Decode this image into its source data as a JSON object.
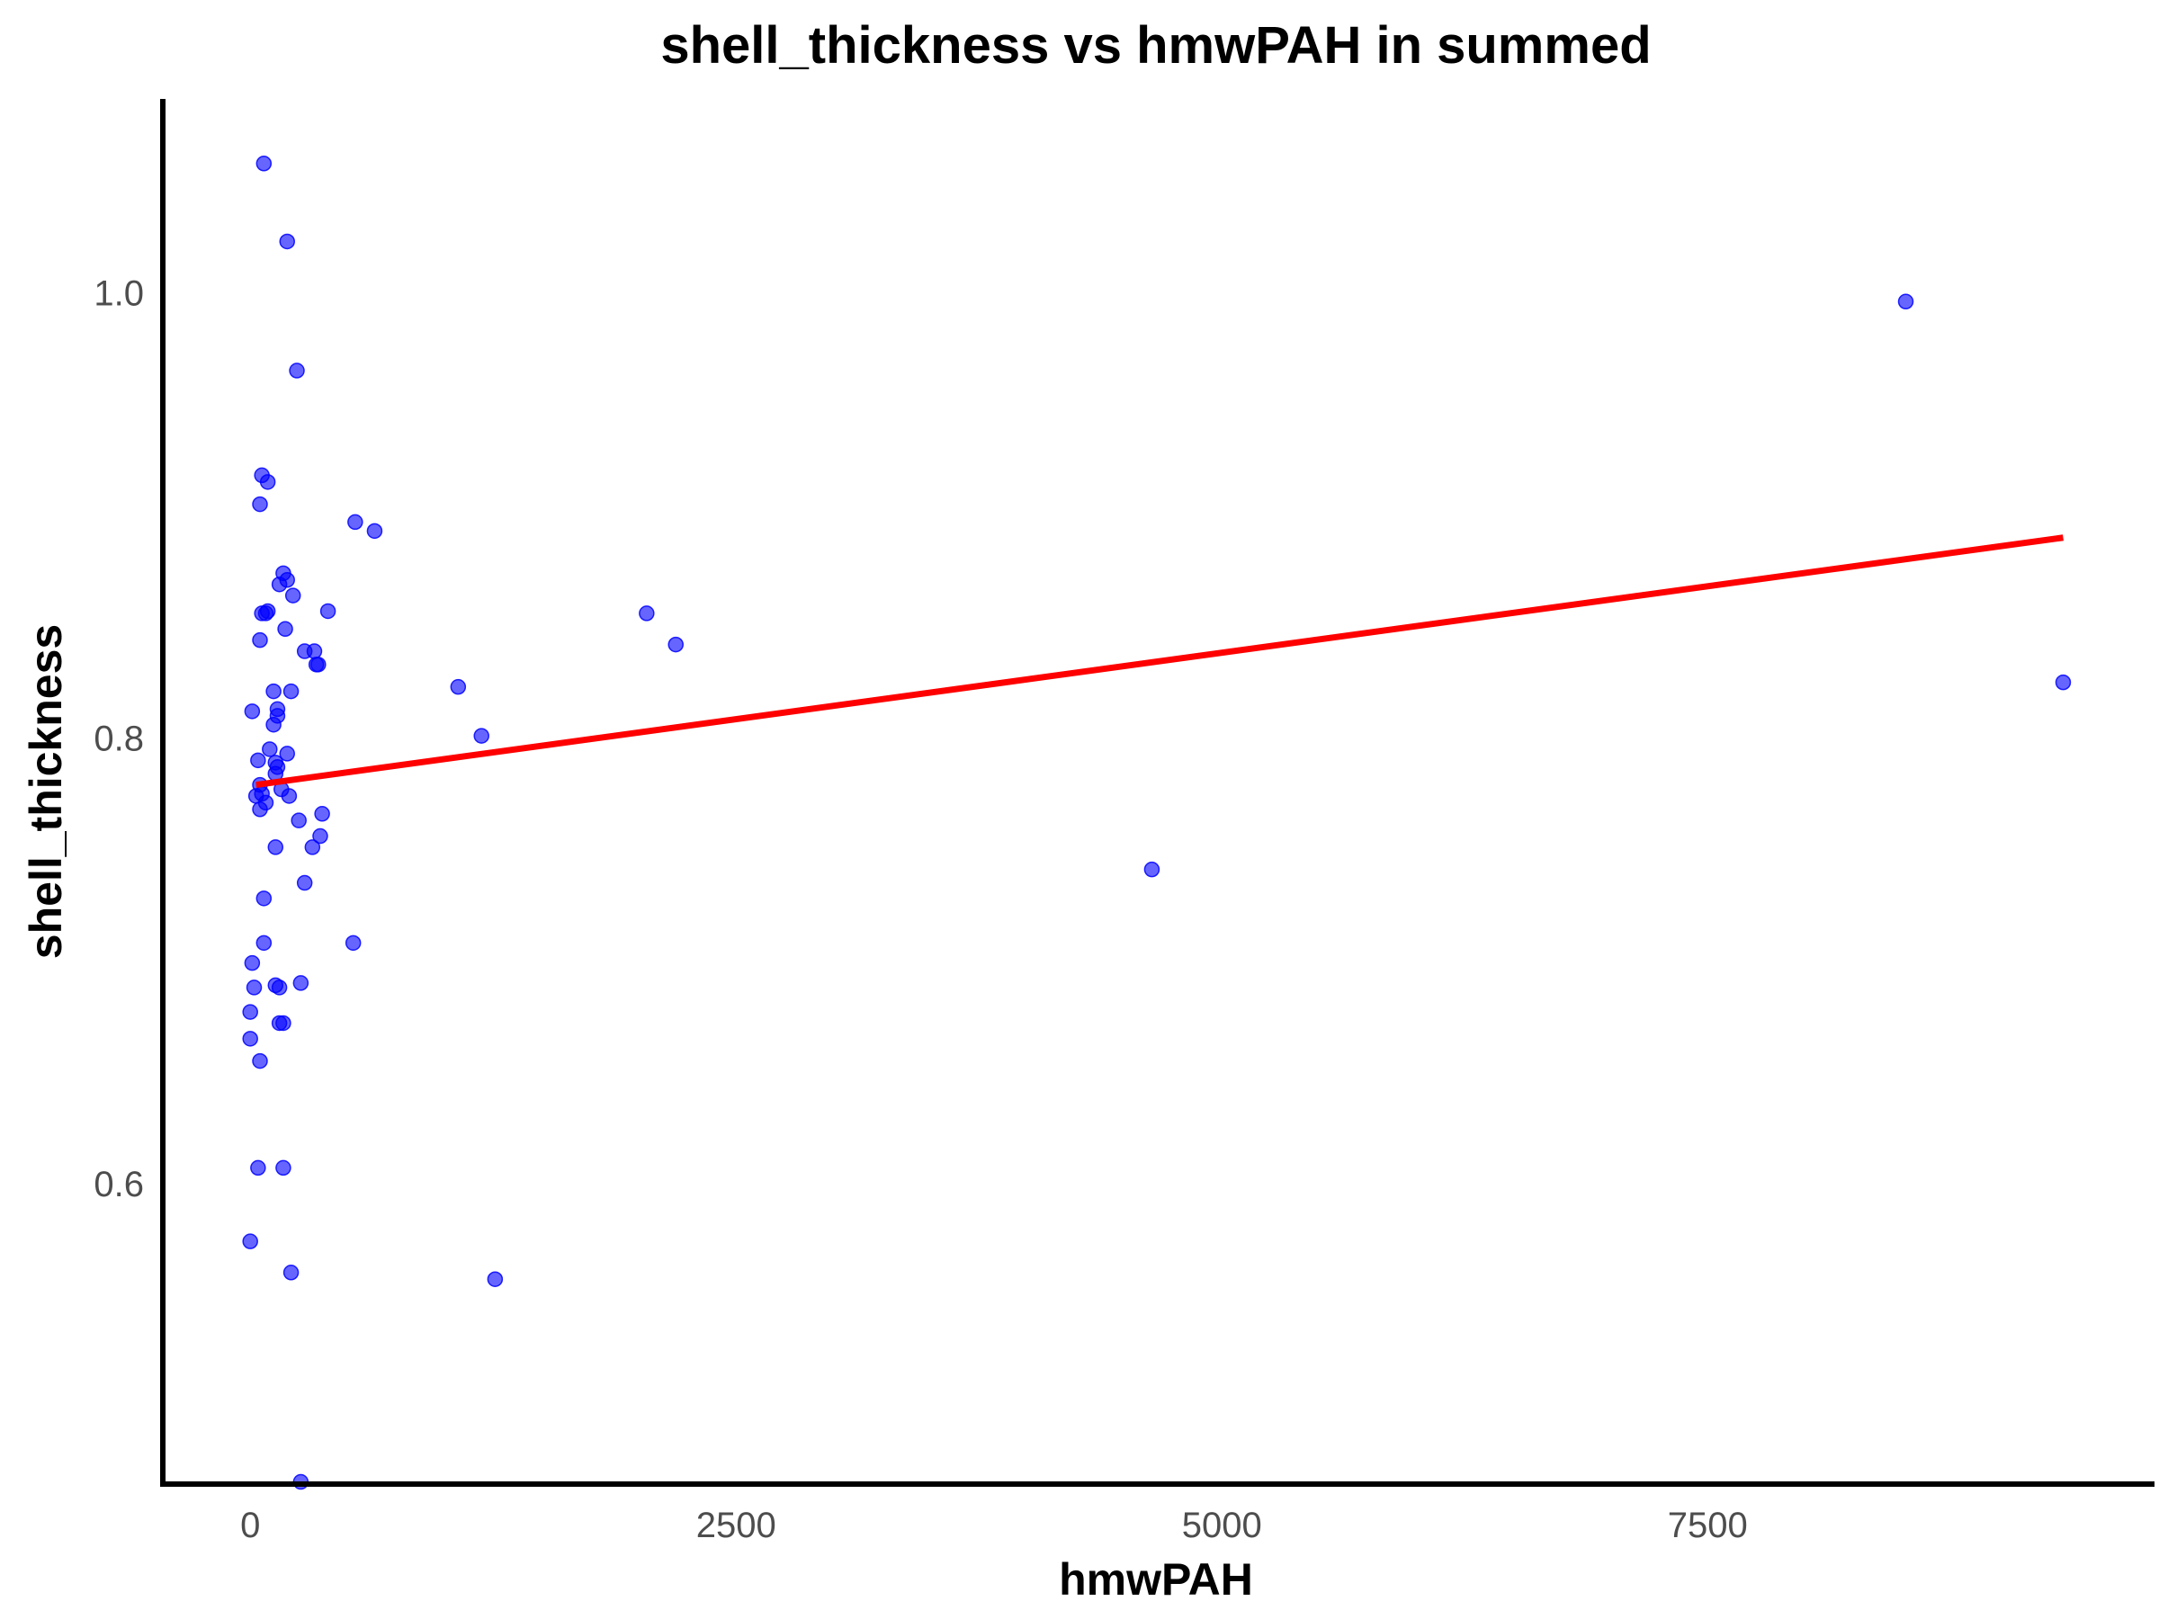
{
  "chart_data": {
    "type": "scatter",
    "title": "shell_thickness vs hmwPAH in summed",
    "xlabel": "hmwPAH",
    "ylabel": "shell_thickness",
    "xlim": [
      -450,
      9800
    ],
    "ylim": [
      0.465,
      1.087
    ],
    "x_ticks": [
      0,
      2500,
      5000,
      7500
    ],
    "x_tick_labels": [
      "0",
      "2500",
      "5000",
      "7500"
    ],
    "y_ticks": [
      0.6,
      0.8,
      1.0
    ],
    "y_tick_labels": [
      "0.6",
      "0.8",
      "1.0"
    ],
    "grid": false,
    "legend": "none",
    "point_color": "#0000ff",
    "trend_color": "#ff0000",
    "trend_line": {
      "x": [
        30,
        9330
      ],
      "y": [
        0.779,
        0.89
      ]
    },
    "points": [
      {
        "x": 70,
        "y": 1.058
      },
      {
        "x": 190,
        "y": 1.023
      },
      {
        "x": 240,
        "y": 0.965
      },
      {
        "x": 60,
        "y": 0.918
      },
      {
        "x": 90,
        "y": 0.915
      },
      {
        "x": 50,
        "y": 0.905
      },
      {
        "x": 540,
        "y": 0.897
      },
      {
        "x": 640,
        "y": 0.893
      },
      {
        "x": 170,
        "y": 0.874
      },
      {
        "x": 190,
        "y": 0.871
      },
      {
        "x": 150,
        "y": 0.869
      },
      {
        "x": 220,
        "y": 0.864
      },
      {
        "x": 400,
        "y": 0.857
      },
      {
        "x": 60,
        "y": 0.856
      },
      {
        "x": 80,
        "y": 0.856
      },
      {
        "x": 90,
        "y": 0.857
      },
      {
        "x": 180,
        "y": 0.849
      },
      {
        "x": 50,
        "y": 0.844
      },
      {
        "x": 280,
        "y": 0.839
      },
      {
        "x": 330,
        "y": 0.839
      },
      {
        "x": 340,
        "y": 0.833
      },
      {
        "x": 350,
        "y": 0.833
      },
      {
        "x": 120,
        "y": 0.821
      },
      {
        "x": 210,
        "y": 0.821
      },
      {
        "x": 140,
        "y": 0.813
      },
      {
        "x": 10,
        "y": 0.812
      },
      {
        "x": 140,
        "y": 0.81
      },
      {
        "x": 120,
        "y": 0.806
      },
      {
        "x": 100,
        "y": 0.795
      },
      {
        "x": 190,
        "y": 0.793
      },
      {
        "x": 40,
        "y": 0.79
      },
      {
        "x": 130,
        "y": 0.789
      },
      {
        "x": 140,
        "y": 0.787
      },
      {
        "x": 130,
        "y": 0.784
      },
      {
        "x": 50,
        "y": 0.779
      },
      {
        "x": 160,
        "y": 0.777
      },
      {
        "x": 30,
        "y": 0.774
      },
      {
        "x": 60,
        "y": 0.775
      },
      {
        "x": 200,
        "y": 0.774
      },
      {
        "x": 80,
        "y": 0.771
      },
      {
        "x": 50,
        "y": 0.768
      },
      {
        "x": 370,
        "y": 0.766
      },
      {
        "x": 250,
        "y": 0.763
      },
      {
        "x": 360,
        "y": 0.756
      },
      {
        "x": 130,
        "y": 0.751
      },
      {
        "x": 320,
        "y": 0.751
      },
      {
        "x": 280,
        "y": 0.735
      },
      {
        "x": 70,
        "y": 0.728
      },
      {
        "x": 530,
        "y": 0.708
      },
      {
        "x": 70,
        "y": 0.708
      },
      {
        "x": 10,
        "y": 0.699
      },
      {
        "x": 260,
        "y": 0.69
      },
      {
        "x": 20,
        "y": 0.688
      },
      {
        "x": 130,
        "y": 0.689
      },
      {
        "x": 150,
        "y": 0.688
      },
      {
        "x": 0,
        "y": 0.677
      },
      {
        "x": 150,
        "y": 0.672
      },
      {
        "x": 170,
        "y": 0.672
      },
      {
        "x": 0,
        "y": 0.665
      },
      {
        "x": 50,
        "y": 0.655
      },
      {
        "x": 40,
        "y": 0.607
      },
      {
        "x": 170,
        "y": 0.607
      },
      {
        "x": 0,
        "y": 0.574
      },
      {
        "x": 210,
        "y": 0.56
      },
      {
        "x": 1260,
        "y": 0.557
      },
      {
        "x": 260,
        "y": 0.466
      },
      {
        "x": 1070,
        "y": 0.823
      },
      {
        "x": 1190,
        "y": 0.801
      },
      {
        "x": 2040,
        "y": 0.856
      },
      {
        "x": 2190,
        "y": 0.842
      },
      {
        "x": 4640,
        "y": 0.741
      },
      {
        "x": 8520,
        "y": 0.996
      },
      {
        "x": 9330,
        "y": 0.825
      }
    ]
  }
}
